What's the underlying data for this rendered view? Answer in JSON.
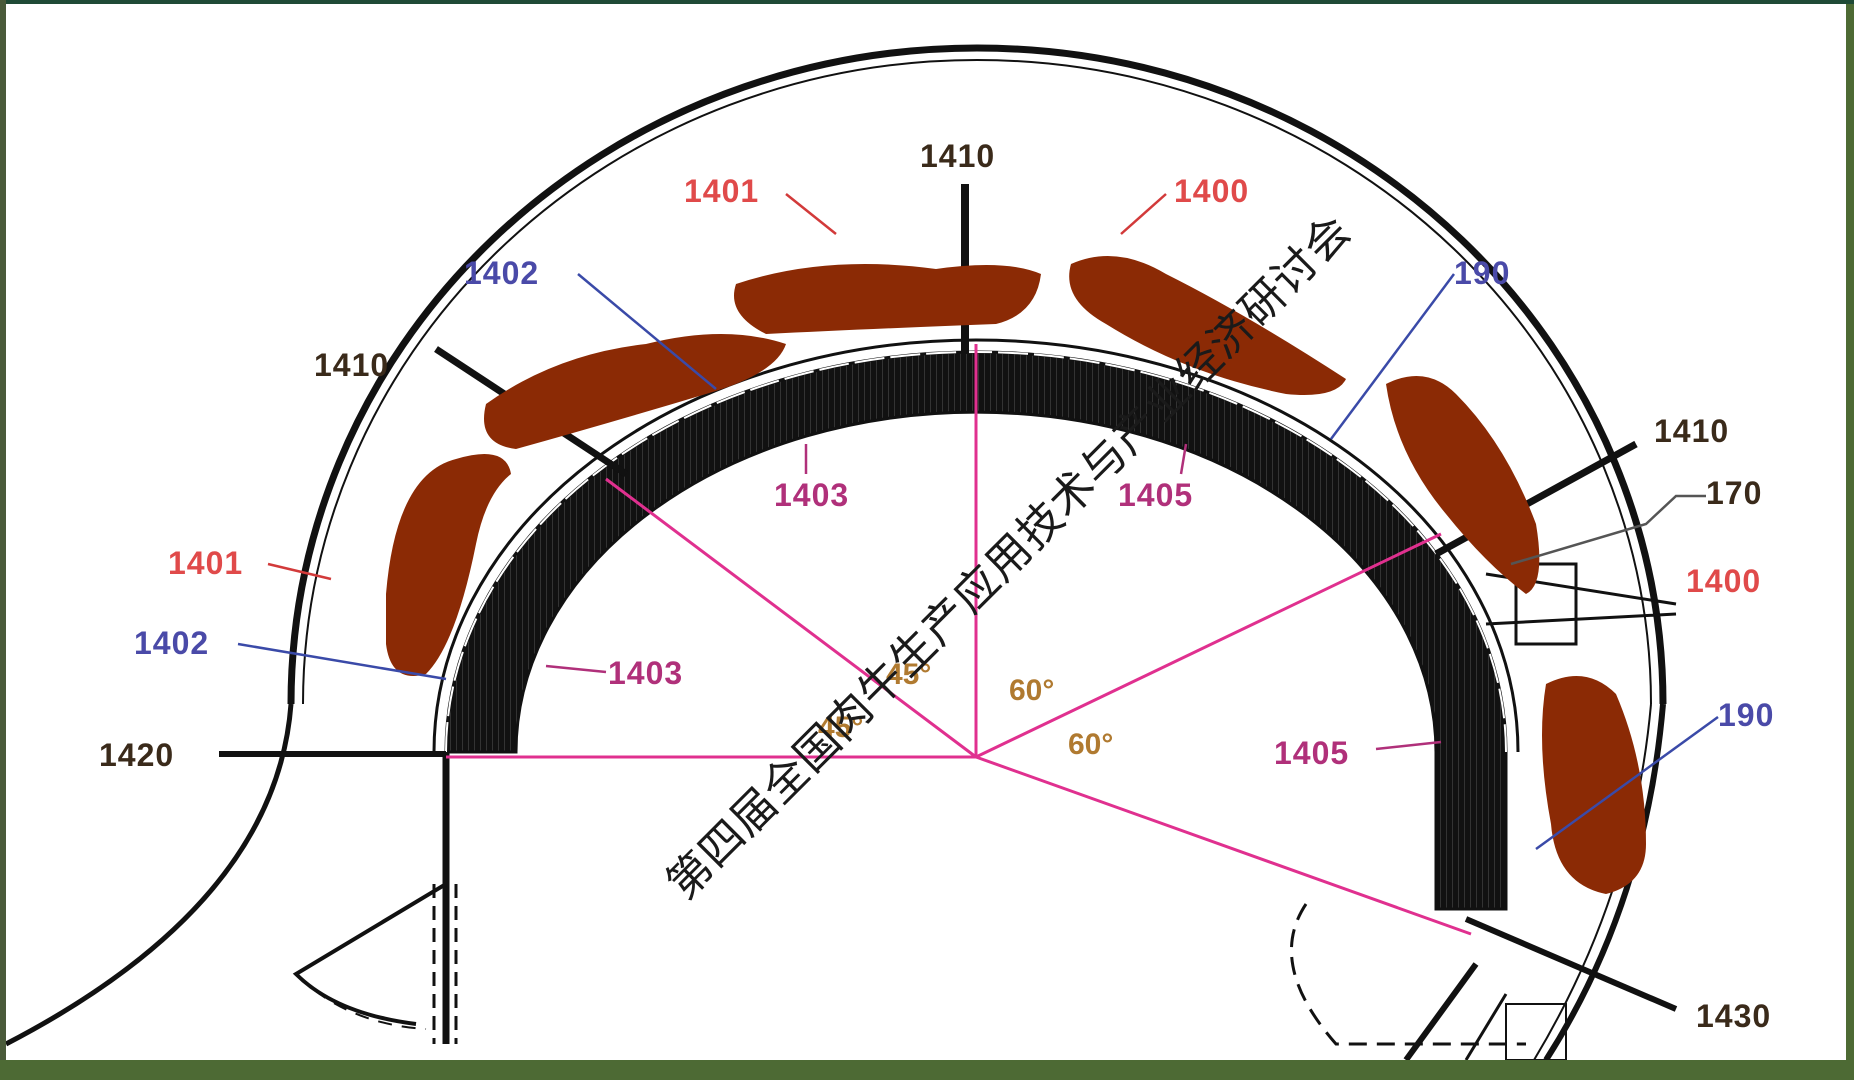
{
  "watermark": "第四届全国肉牛生产应用技术与产业经济研讨会",
  "colors": {
    "label_red": "#e04a4a",
    "label_blue": "#4a4aa8",
    "label_magenta": "#b0307a",
    "label_dark": "#3a2a1a",
    "angle_text": "#b07a30",
    "radial_lines": "#e0308f",
    "cattle": "#8b2a05",
    "pointer_blue": "#3a4aa8"
  },
  "labels": {
    "l1410_top": "1410",
    "l1401_top": "1401",
    "l1400_top": "1400",
    "l1402_top": "1402",
    "l190_top": "190",
    "l1410_left": "1410",
    "l1410_right": "1410",
    "l170": "170",
    "l1403_top": "1403",
    "l1405_top": "1405",
    "l1401_left": "1401",
    "l1400_right": "1400",
    "l1402_left": "1402",
    "l1403_left": "1403",
    "l1420": "1420",
    "l1405_right": "1405",
    "l190_right": "190",
    "l1430": "1430"
  },
  "angles": {
    "a45_upper": "45°",
    "a45_lower": "45°",
    "a60_upper": "60°",
    "a60_lower": "60°"
  }
}
